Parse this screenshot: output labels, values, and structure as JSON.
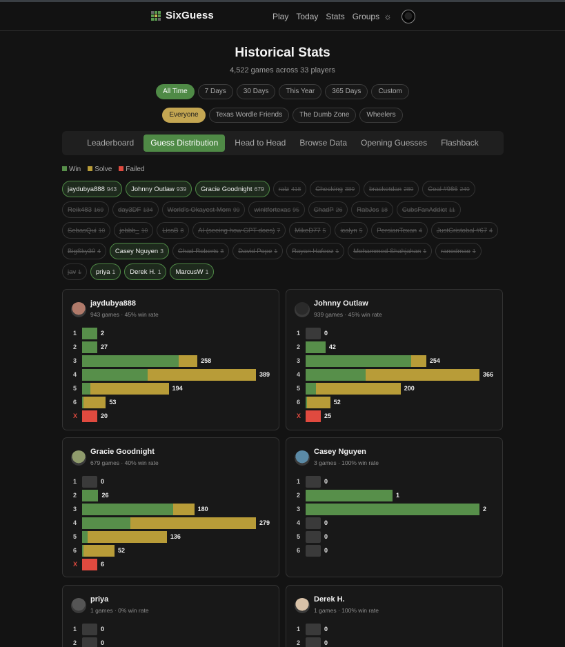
{
  "brand": {
    "name": "SixGuess"
  },
  "nav": {
    "items": [
      "Play",
      "Today",
      "Stats",
      "Groups"
    ]
  },
  "page": {
    "title": "Historical Stats",
    "subtitle": "4,522 games across 33 players"
  },
  "time_filters": [
    {
      "label": "All Time",
      "active": true
    },
    {
      "label": "7 Days",
      "active": false
    },
    {
      "label": "30 Days",
      "active": false
    },
    {
      "label": "This Year",
      "active": false
    },
    {
      "label": "365 Days",
      "active": false
    },
    {
      "label": "Custom",
      "active": false
    }
  ],
  "group_filters": [
    {
      "label": "Everyone",
      "active": true
    },
    {
      "label": "Texas Wordle Friends",
      "active": false
    },
    {
      "label": "The Dumb Zone",
      "active": false
    },
    {
      "label": "Wheelers",
      "active": false
    }
  ],
  "tabs": [
    {
      "label": "Leaderboard",
      "active": false
    },
    {
      "label": "Guess Distribution",
      "active": true
    },
    {
      "label": "Head to Head",
      "active": false
    },
    {
      "label": "Browse Data",
      "active": false
    },
    {
      "label": "Opening Guesses",
      "active": false
    },
    {
      "label": "Flashback",
      "active": false
    }
  ],
  "legend": [
    {
      "label": "Win",
      "color": "#578f4a"
    },
    {
      "label": "Solve",
      "color": "#b89c38"
    },
    {
      "label": "Failed",
      "color": "#e04a3f"
    }
  ],
  "players": [
    {
      "name": "jaydubya888",
      "count": "943",
      "on": true
    },
    {
      "name": "Johnny Outlaw",
      "count": "939",
      "on": true
    },
    {
      "name": "Gracie Goodnight",
      "count": "679",
      "on": true
    },
    {
      "name": "ralz",
      "count": "418",
      "on": false
    },
    {
      "name": "Checking",
      "count": "389",
      "on": false
    },
    {
      "name": "bracketdan",
      "count": "280",
      "on": false
    },
    {
      "name": "Coal #986",
      "count": "249",
      "on": false
    },
    {
      "name": "Reik483",
      "count": "169",
      "on": false
    },
    {
      "name": "day3DF",
      "count": "134",
      "on": false
    },
    {
      "name": "World's Okayest Mom",
      "count": "99",
      "on": false
    },
    {
      "name": "winitfortexas",
      "count": "95",
      "on": false
    },
    {
      "name": "ChadP",
      "count": "26",
      "on": false
    },
    {
      "name": "RabJos",
      "count": "18",
      "on": false
    },
    {
      "name": "CubsFanAddict",
      "count": "11",
      "on": false
    },
    {
      "name": "SebasQui",
      "count": "10",
      "on": false
    },
    {
      "name": "jebbb_",
      "count": "10",
      "on": false
    },
    {
      "name": "LissB",
      "count": "8",
      "on": false
    },
    {
      "name": "AI (seeing how GPT does)",
      "count": "7",
      "on": false
    },
    {
      "name": "MikeD77",
      "count": "5",
      "on": false
    },
    {
      "name": "icalyn",
      "count": "5",
      "on": false
    },
    {
      "name": "PersianTexan",
      "count": "4",
      "on": false
    },
    {
      "name": "JustCristobal #67",
      "count": "4",
      "on": false
    },
    {
      "name": "BigSky30",
      "count": "4",
      "on": false
    },
    {
      "name": "Casey Nguyen",
      "count": "3",
      "on": true
    },
    {
      "name": "Chad Roberts",
      "count": "3",
      "on": false
    },
    {
      "name": "David Pope",
      "count": "1",
      "on": false
    },
    {
      "name": "Rayan Hafeez",
      "count": "1",
      "on": false
    },
    {
      "name": "Mohammed Shahjahan",
      "count": "1",
      "on": false
    },
    {
      "name": "ranodmao",
      "count": "1",
      "on": false
    },
    {
      "name": "jav",
      "count": "1",
      "on": false
    },
    {
      "name": "priya",
      "count": "1",
      "on": true
    },
    {
      "name": "Derek H.",
      "count": "1",
      "on": true
    },
    {
      "name": "MarcusW",
      "count": "1",
      "on": true
    }
  ],
  "cards": [
    {
      "name": "jaydubya888",
      "meta": "943 games · 45% win rate",
      "avatar": "#b07a6a",
      "rows": [
        {
          "label": "1",
          "win": 2,
          "solve": 0,
          "total": "2"
        },
        {
          "label": "2",
          "win": 27,
          "solve": 0,
          "total": "27"
        },
        {
          "label": "3",
          "win": 216,
          "solve": 42,
          "total": "258"
        },
        {
          "label": "4",
          "win": 147,
          "solve": 242,
          "total": "389"
        },
        {
          "label": "5",
          "win": 18,
          "solve": 176,
          "total": "194"
        },
        {
          "label": "6",
          "win": 3,
          "solve": 50,
          "total": "53"
        },
        {
          "label": "X",
          "fail": 20,
          "total": "20"
        }
      ]
    },
    {
      "name": "Johnny Outlaw",
      "meta": "939 games · 45% win rate",
      "avatar": "#2a2a2a",
      "rows": [
        {
          "label": "1",
          "win": 0,
          "solve": 0,
          "total": "0"
        },
        {
          "label": "2",
          "win": 42,
          "solve": 0,
          "total": "42"
        },
        {
          "label": "3",
          "win": 222,
          "solve": 32,
          "total": "254"
        },
        {
          "label": "4",
          "win": 127,
          "solve": 239,
          "total": "366"
        },
        {
          "label": "5",
          "win": 22,
          "solve": 178,
          "total": "200"
        },
        {
          "label": "6",
          "win": 3,
          "solve": 49,
          "total": "52"
        },
        {
          "label": "X",
          "fail": 25,
          "total": "25"
        }
      ]
    },
    {
      "name": "Gracie Goodnight",
      "meta": "679 games · 40% win rate",
      "avatar": "#8f9b6c",
      "rows": [
        {
          "label": "1",
          "win": 0,
          "solve": 0,
          "total": "0"
        },
        {
          "label": "2",
          "win": 26,
          "solve": 0,
          "total": "26"
        },
        {
          "label": "3",
          "win": 146,
          "solve": 34,
          "total": "180"
        },
        {
          "label": "4",
          "win": 77,
          "solve": 202,
          "total": "279"
        },
        {
          "label": "5",
          "win": 9,
          "solve": 127,
          "total": "136"
        },
        {
          "label": "6",
          "win": 2,
          "solve": 50,
          "total": "52"
        },
        {
          "label": "X",
          "fail": 6,
          "total": "6"
        }
      ]
    },
    {
      "name": "Casey Nguyen",
      "meta": "3 games · 100% win rate",
      "avatar": "#5b8aa6",
      "rows": [
        {
          "label": "1",
          "win": 0,
          "solve": 0,
          "total": "0"
        },
        {
          "label": "2",
          "win": 1,
          "solve": 0,
          "total": "1"
        },
        {
          "label": "3",
          "win": 2,
          "solve": 0,
          "total": "2"
        },
        {
          "label": "4",
          "win": 0,
          "solve": 0,
          "total": "0"
        },
        {
          "label": "5",
          "win": 0,
          "solve": 0,
          "total": "0"
        },
        {
          "label": "6",
          "win": 0,
          "solve": 0,
          "total": "0"
        }
      ]
    },
    {
      "name": "priya",
      "meta": "1 games · 0% win rate",
      "avatar": "#555",
      "rows": [
        {
          "label": "1",
          "win": 0,
          "solve": 0,
          "total": "0"
        },
        {
          "label": "2",
          "win": 0,
          "solve": 0,
          "total": "0"
        }
      ]
    },
    {
      "name": "Derek H.",
      "meta": "1 games · 100% win rate",
      "avatar": "#d9c2a8",
      "rows": [
        {
          "label": "1",
          "win": 0,
          "solve": 0,
          "total": "0"
        },
        {
          "label": "2",
          "win": 0,
          "solve": 0,
          "total": "0"
        }
      ]
    }
  ]
}
